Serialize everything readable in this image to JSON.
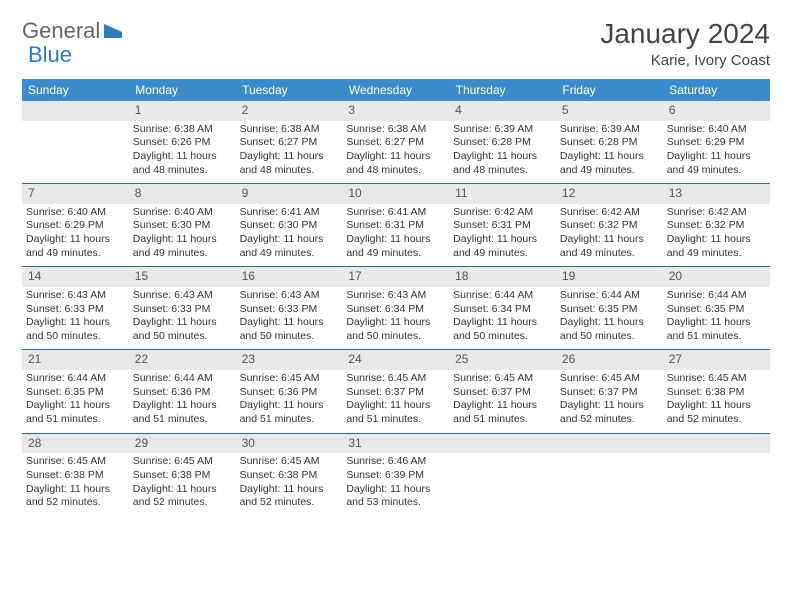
{
  "logo": {
    "text1": "General",
    "text2": "Blue"
  },
  "title": "January 2024",
  "location": "Karie, Ivory Coast",
  "colors": {
    "header_bg": "#3b8bca",
    "header_text": "#ffffff",
    "daynum_bg": "#e8e8e8",
    "row_divider": "#2a6aa0",
    "body_text": "#333333",
    "logo_general": "#666666",
    "logo_blue": "#2e7cc0"
  },
  "font": {
    "title_size": 28,
    "location_size": 15,
    "header_size": 12,
    "daynum_size": 12,
    "cell_size": 10.5
  },
  "day_headers": [
    "Sunday",
    "Monday",
    "Tuesday",
    "Wednesday",
    "Thursday",
    "Friday",
    "Saturday"
  ],
  "weeks": [
    {
      "nums": [
        "",
        "1",
        "2",
        "3",
        "4",
        "5",
        "6"
      ],
      "cells": [
        null,
        {
          "sunrise": "Sunrise: 6:38 AM",
          "sunset": "Sunset: 6:26 PM",
          "day1": "Daylight: 11 hours",
          "day2": "and 48 minutes."
        },
        {
          "sunrise": "Sunrise: 6:38 AM",
          "sunset": "Sunset: 6:27 PM",
          "day1": "Daylight: 11 hours",
          "day2": "and 48 minutes."
        },
        {
          "sunrise": "Sunrise: 6:38 AM",
          "sunset": "Sunset: 6:27 PM",
          "day1": "Daylight: 11 hours",
          "day2": "and 48 minutes."
        },
        {
          "sunrise": "Sunrise: 6:39 AM",
          "sunset": "Sunset: 6:28 PM",
          "day1": "Daylight: 11 hours",
          "day2": "and 48 minutes."
        },
        {
          "sunrise": "Sunrise: 6:39 AM",
          "sunset": "Sunset: 6:28 PM",
          "day1": "Daylight: 11 hours",
          "day2": "and 49 minutes."
        },
        {
          "sunrise": "Sunrise: 6:40 AM",
          "sunset": "Sunset: 6:29 PM",
          "day1": "Daylight: 11 hours",
          "day2": "and 49 minutes."
        }
      ]
    },
    {
      "nums": [
        "7",
        "8",
        "9",
        "10",
        "11",
        "12",
        "13"
      ],
      "cells": [
        {
          "sunrise": "Sunrise: 6:40 AM",
          "sunset": "Sunset: 6:29 PM",
          "day1": "Daylight: 11 hours",
          "day2": "and 49 minutes."
        },
        {
          "sunrise": "Sunrise: 6:40 AM",
          "sunset": "Sunset: 6:30 PM",
          "day1": "Daylight: 11 hours",
          "day2": "and 49 minutes."
        },
        {
          "sunrise": "Sunrise: 6:41 AM",
          "sunset": "Sunset: 6:30 PM",
          "day1": "Daylight: 11 hours",
          "day2": "and 49 minutes."
        },
        {
          "sunrise": "Sunrise: 6:41 AM",
          "sunset": "Sunset: 6:31 PM",
          "day1": "Daylight: 11 hours",
          "day2": "and 49 minutes."
        },
        {
          "sunrise": "Sunrise: 6:42 AM",
          "sunset": "Sunset: 6:31 PM",
          "day1": "Daylight: 11 hours",
          "day2": "and 49 minutes."
        },
        {
          "sunrise": "Sunrise: 6:42 AM",
          "sunset": "Sunset: 6:32 PM",
          "day1": "Daylight: 11 hours",
          "day2": "and 49 minutes."
        },
        {
          "sunrise": "Sunrise: 6:42 AM",
          "sunset": "Sunset: 6:32 PM",
          "day1": "Daylight: 11 hours",
          "day2": "and 49 minutes."
        }
      ]
    },
    {
      "nums": [
        "14",
        "15",
        "16",
        "17",
        "18",
        "19",
        "20"
      ],
      "cells": [
        {
          "sunrise": "Sunrise: 6:43 AM",
          "sunset": "Sunset: 6:33 PM",
          "day1": "Daylight: 11 hours",
          "day2": "and 50 minutes."
        },
        {
          "sunrise": "Sunrise: 6:43 AM",
          "sunset": "Sunset: 6:33 PM",
          "day1": "Daylight: 11 hours",
          "day2": "and 50 minutes."
        },
        {
          "sunrise": "Sunrise: 6:43 AM",
          "sunset": "Sunset: 6:33 PM",
          "day1": "Daylight: 11 hours",
          "day2": "and 50 minutes."
        },
        {
          "sunrise": "Sunrise: 6:43 AM",
          "sunset": "Sunset: 6:34 PM",
          "day1": "Daylight: 11 hours",
          "day2": "and 50 minutes."
        },
        {
          "sunrise": "Sunrise: 6:44 AM",
          "sunset": "Sunset: 6:34 PM",
          "day1": "Daylight: 11 hours",
          "day2": "and 50 minutes."
        },
        {
          "sunrise": "Sunrise: 6:44 AM",
          "sunset": "Sunset: 6:35 PM",
          "day1": "Daylight: 11 hours",
          "day2": "and 50 minutes."
        },
        {
          "sunrise": "Sunrise: 6:44 AM",
          "sunset": "Sunset: 6:35 PM",
          "day1": "Daylight: 11 hours",
          "day2": "and 51 minutes."
        }
      ]
    },
    {
      "nums": [
        "21",
        "22",
        "23",
        "24",
        "25",
        "26",
        "27"
      ],
      "cells": [
        {
          "sunrise": "Sunrise: 6:44 AM",
          "sunset": "Sunset: 6:35 PM",
          "day1": "Daylight: 11 hours",
          "day2": "and 51 minutes."
        },
        {
          "sunrise": "Sunrise: 6:44 AM",
          "sunset": "Sunset: 6:36 PM",
          "day1": "Daylight: 11 hours",
          "day2": "and 51 minutes."
        },
        {
          "sunrise": "Sunrise: 6:45 AM",
          "sunset": "Sunset: 6:36 PM",
          "day1": "Daylight: 11 hours",
          "day2": "and 51 minutes."
        },
        {
          "sunrise": "Sunrise: 6:45 AM",
          "sunset": "Sunset: 6:37 PM",
          "day1": "Daylight: 11 hours",
          "day2": "and 51 minutes."
        },
        {
          "sunrise": "Sunrise: 6:45 AM",
          "sunset": "Sunset: 6:37 PM",
          "day1": "Daylight: 11 hours",
          "day2": "and 51 minutes."
        },
        {
          "sunrise": "Sunrise: 6:45 AM",
          "sunset": "Sunset: 6:37 PM",
          "day1": "Daylight: 11 hours",
          "day2": "and 52 minutes."
        },
        {
          "sunrise": "Sunrise: 6:45 AM",
          "sunset": "Sunset: 6:38 PM",
          "day1": "Daylight: 11 hours",
          "day2": "and 52 minutes."
        }
      ]
    },
    {
      "nums": [
        "28",
        "29",
        "30",
        "31",
        "",
        "",
        ""
      ],
      "cells": [
        {
          "sunrise": "Sunrise: 6:45 AM",
          "sunset": "Sunset: 6:38 PM",
          "day1": "Daylight: 11 hours",
          "day2": "and 52 minutes."
        },
        {
          "sunrise": "Sunrise: 6:45 AM",
          "sunset": "Sunset: 6:38 PM",
          "day1": "Daylight: 11 hours",
          "day2": "and 52 minutes."
        },
        {
          "sunrise": "Sunrise: 6:45 AM",
          "sunset": "Sunset: 6:38 PM",
          "day1": "Daylight: 11 hours",
          "day2": "and 52 minutes."
        },
        {
          "sunrise": "Sunrise: 6:46 AM",
          "sunset": "Sunset: 6:39 PM",
          "day1": "Daylight: 11 hours",
          "day2": "and 53 minutes."
        },
        null,
        null,
        null
      ]
    }
  ]
}
